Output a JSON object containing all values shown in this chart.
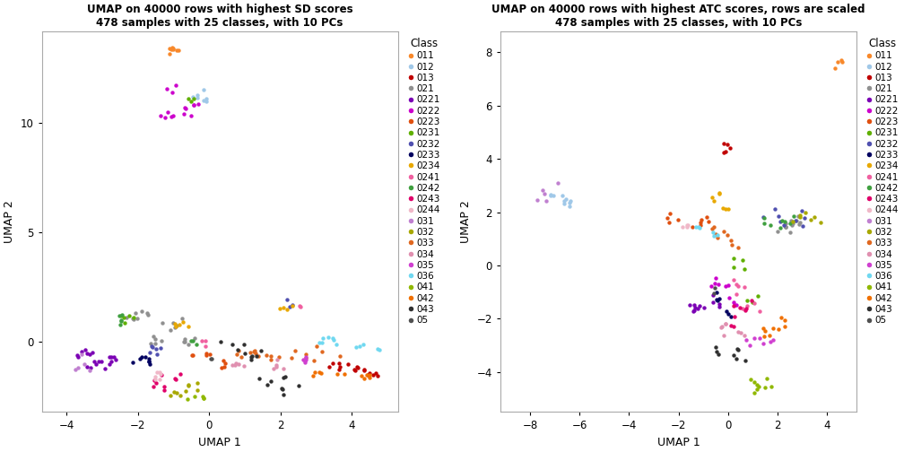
{
  "title1": "UMAP on 40000 rows with highest SD scores\n478 samples with 25 classes, with 10 PCs",
  "title2": "UMAP on 40000 rows with highest ATC scores, rows are scaled\n478 samples with 25 classes, with 10 PCs",
  "xlabel": "UMAP 1",
  "ylabel": "UMAP 2",
  "legend_title": "Class",
  "classes": [
    "011",
    "012",
    "013",
    "021",
    "0221",
    "0222",
    "0223",
    "0231",
    "0232",
    "0233",
    "0234",
    "0241",
    "0242",
    "0243",
    "0244",
    "031",
    "032",
    "033",
    "034",
    "035",
    "036",
    "041",
    "042",
    "043",
    "05"
  ],
  "colors": {
    "011": "#F8882A",
    "012": "#A0C8E8",
    "013": "#C00000",
    "021": "#909090",
    "0221": "#7B00B4",
    "0222": "#CC00CC",
    "0223": "#E05010",
    "0231": "#60B000",
    "0232": "#5050B0",
    "0233": "#000060",
    "0234": "#E8A800",
    "0241": "#F060A0",
    "0242": "#40A040",
    "0243": "#E0006A",
    "0244": "#F0B8C8",
    "031": "#C080D0",
    "032": "#A8A800",
    "033": "#E06820",
    "034": "#E090B0",
    "035": "#D040D0",
    "036": "#70D8F0",
    "041": "#90B800",
    "042": "#F07000",
    "043": "#303030",
    "05": "#505050"
  },
  "plot1": {
    "xlim": [
      -4.7,
      5.3
    ],
    "ylim": [
      -3.2,
      14.2
    ],
    "xticks": [
      -4,
      -2,
      0,
      2,
      4
    ],
    "yticks": [
      0,
      5,
      10
    ]
  },
  "plot2": {
    "xlim": [
      -9.2,
      5.2
    ],
    "ylim": [
      -5.5,
      8.8
    ],
    "xticks": [
      -8,
      -6,
      -4,
      -2,
      0,
      2,
      4
    ],
    "yticks": [
      -4,
      -2,
      0,
      2,
      4,
      6,
      8
    ]
  }
}
